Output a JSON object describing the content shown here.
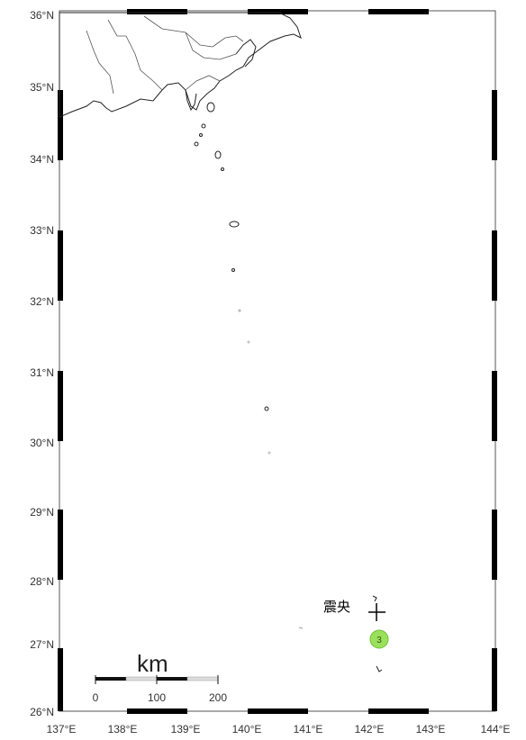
{
  "lat_labels": [
    "36°N",
    "35°N",
    "34°N",
    "33°N",
    "32°N",
    "31°N",
    "30°N",
    "29°N",
    "28°N",
    "27°N",
    "26°N"
  ],
  "lon_labels": [
    "137°E",
    "138°E",
    "139°E",
    "140°E",
    "141°E",
    "142°E",
    "143°E",
    "144°E"
  ],
  "epicenter": {
    "label": "震央"
  },
  "intensity_marker": {
    "value": "3",
    "color": "#9be05a"
  },
  "scale": {
    "unit": "km",
    "ticks": [
      "0",
      "100",
      "200"
    ]
  },
  "colors": {
    "frame": "#000000",
    "land": "#ffffff",
    "coast": "#222222"
  }
}
